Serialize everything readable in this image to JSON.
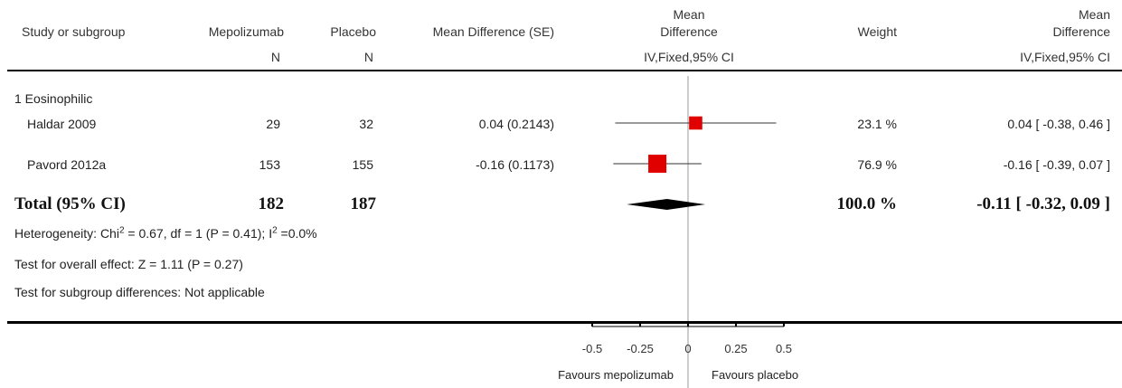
{
  "headers": {
    "study": "Study or subgroup",
    "group1": "Mepolizumab",
    "group2": "Placebo",
    "md_se": "Mean Difference (SE)",
    "md_plot_line1": "Mean",
    "md_plot_line2": "Difference",
    "weight": "Weight",
    "md_ci_line1": "Mean",
    "md_ci_line2": "Difference",
    "n1": "N",
    "n2": "N",
    "method_plot": "IV,Fixed,95% CI",
    "method_ci": "IV,Fixed,95% CI"
  },
  "subgroup": {
    "label": "1 Eosinophilic"
  },
  "studies": [
    {
      "name": "Haldar 2009",
      "n1": "29",
      "n2": "32",
      "md_se": "0.04 (0.2143)",
      "weight": "23.1 %",
      "ci": "0.04 [ -0.38, 0.46 ]"
    },
    {
      "name": "Pavord 2012a",
      "n1": "153",
      "n2": "155",
      "md_se": "-0.16 (0.1173)",
      "weight": "76.9 %",
      "ci": "-0.16 [ -0.39, 0.07 ]"
    }
  ],
  "total": {
    "label": "Total (95% CI)",
    "n1": "182",
    "n2": "187",
    "weight": "100.0 %",
    "ci": "-0.11 [ -0.32, 0.09 ]"
  },
  "stats": {
    "heterogeneity_prefix": "Heterogeneity: Chi",
    "heterogeneity_sup1": "2",
    "heterogeneity_mid": " = 0.67, df = 1 (P = 0.41); I",
    "heterogeneity_sup2": "2",
    "heterogeneity_suffix": " =0.0%",
    "overall_effect": "Test for overall effect: Z = 1.11 (P = 0.27)",
    "subgroup_diff": "Test for subgroup differences: Not applicable"
  },
  "axis": {
    "favours_left": "Favours mepolizumab",
    "favours_right": "Favours placebo"
  },
  "chart_data": {
    "type": "forest",
    "xlim": [
      -0.5,
      0.5
    ],
    "ticks": [
      -0.5,
      -0.25,
      0,
      0.25,
      0.5
    ],
    "tick_labels": [
      "-0.5",
      "-0.25",
      "0",
      "0.25",
      "0.5"
    ],
    "studies": [
      {
        "name": "Haldar 2009",
        "estimate": 0.04,
        "ci_low": -0.38,
        "ci_high": 0.46,
        "weight": 23.1
      },
      {
        "name": "Pavord 2012a",
        "estimate": -0.16,
        "ci_low": -0.39,
        "ci_high": 0.07,
        "weight": 76.9
      }
    ],
    "pooled": {
      "estimate": -0.11,
      "ci_low": -0.32,
      "ci_high": 0.09
    },
    "colors": {
      "box": "#e00000",
      "diamond": "#000000",
      "line": "#333333",
      "null_line": "#999999"
    }
  }
}
